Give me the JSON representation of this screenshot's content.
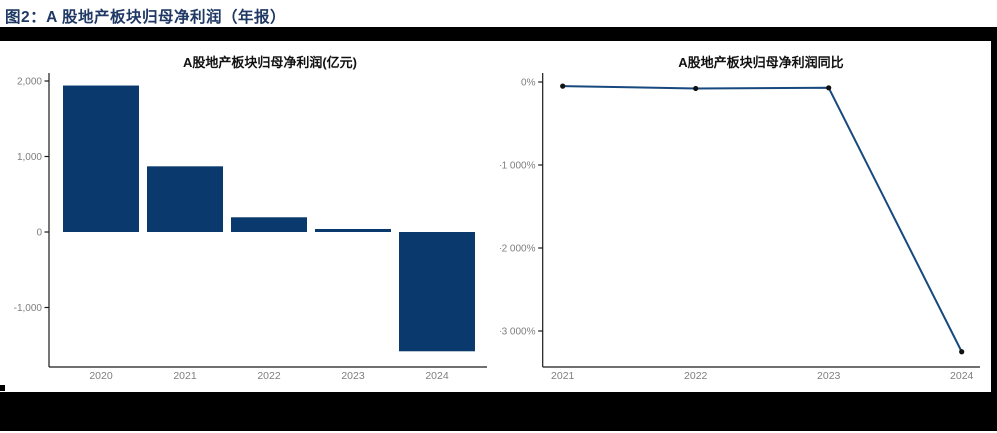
{
  "figure_title": "图2：A 股地产板块归母净利润（年报）",
  "colors": {
    "figure_title": "#1F3864",
    "bar_fill": "#0A3A6D",
    "line_stroke": "#17497E",
    "marker_fill": "#111111",
    "axis": "#1A1A1A",
    "tick_label": "#7E7E7E",
    "chart_title": "#111111",
    "divider_rule": "#000000"
  },
  "chart_data": [
    {
      "id": "net-profit-bar",
      "type": "bar",
      "title": "A股地产板块归母净利润(亿元)",
      "categories": [
        "2020",
        "2021",
        "2022",
        "2023",
        "2024"
      ],
      "values": [
        1940,
        870,
        195,
        40,
        -1580
      ],
      "xlabel": "",
      "ylabel": "",
      "ylim": [
        -1790,
        2100
      ],
      "yticks": [
        {
          "label": "2,000",
          "value": 2000
        },
        {
          "label": "1,000",
          "value": 1000
        },
        {
          "label": "0",
          "value": 0
        },
        {
          "label": "-1,000",
          "value": -1000
        }
      ],
      "grid": false,
      "legend": "none"
    },
    {
      "id": "net-profit-yoy-line",
      "type": "line",
      "title": "A股地产板块归母净利润同比",
      "categories": [
        "2021",
        "2022",
        "2023",
        "2024"
      ],
      "values": [
        -50,
        -78,
        -70,
        -3250
      ],
      "unit": "%",
      "xlabel": "",
      "ylabel": "",
      "ylim": [
        -3435,
        110
      ],
      "yticks": [
        {
          "label": "0%",
          "value": 0
        },
        {
          "label": "-1 000%",
          "value": -1000
        },
        {
          "label": "-2 000%",
          "value": -2000
        },
        {
          "label": "-3 000%",
          "value": -3000
        }
      ],
      "grid": false,
      "legend": "none"
    }
  ]
}
